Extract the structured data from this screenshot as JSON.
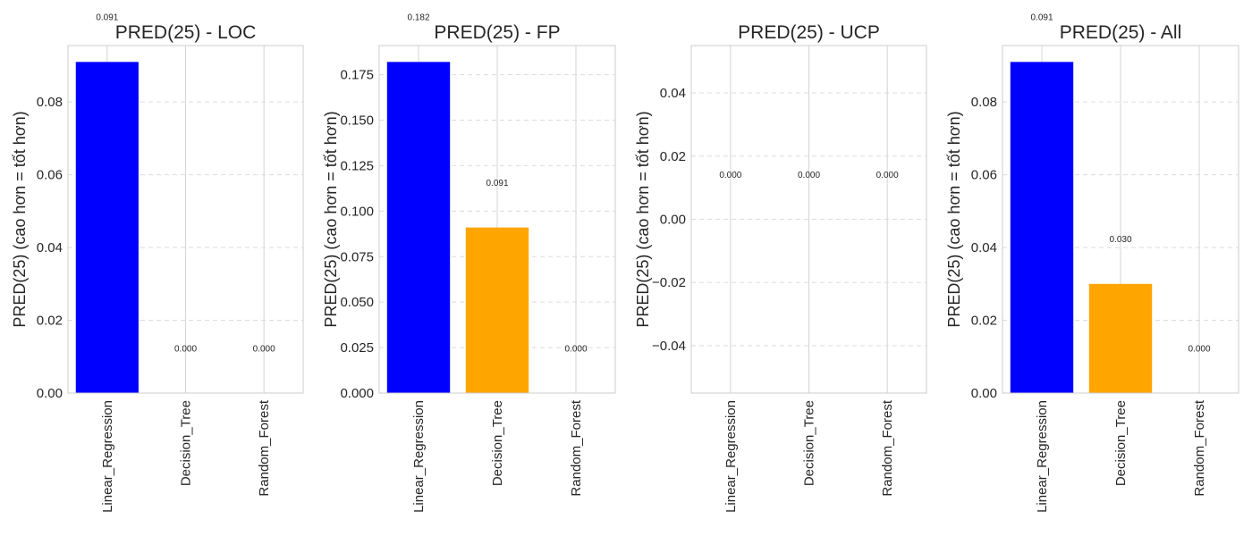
{
  "chart_data": [
    {
      "type": "bar",
      "title": "PRED(25) - LOC",
      "ylabel": "PRED(25) (cao hơn = tốt hơn)",
      "categories": [
        "Linear_Regression",
        "Decision_Tree",
        "Random_Forest"
      ],
      "values": [
        0.091,
        0.0,
        0.0
      ],
      "value_labels": [
        "0.091",
        "0.000",
        "0.000"
      ],
      "colors": [
        "#0000ff",
        "#ffa500",
        "#008000"
      ],
      "ylim": [
        0,
        0.0955
      ],
      "yticks": [
        0,
        0.02,
        0.04,
        0.06,
        0.08
      ],
      "ytick_labels": [
        "0.00",
        "0.02",
        "0.04",
        "0.06",
        "0.08"
      ],
      "grid": true
    },
    {
      "type": "bar",
      "title": "PRED(25) - FP",
      "ylabel": "PRED(25) (cao hơn = tốt hơn)",
      "categories": [
        "Linear_Regression",
        "Decision_Tree",
        "Random_Forest"
      ],
      "values": [
        0.182,
        0.091,
        0.0
      ],
      "value_labels": [
        "0.182",
        "0.091",
        "0.000"
      ],
      "colors": [
        "#0000ff",
        "#ffa500",
        "#008000"
      ],
      "ylim": [
        0,
        0.191
      ],
      "yticks": [
        0,
        0.025,
        0.05,
        0.075,
        0.1,
        0.125,
        0.15,
        0.175
      ],
      "ytick_labels": [
        "0.000",
        "0.025",
        "0.050",
        "0.075",
        "0.100",
        "0.125",
        "0.150",
        "0.175"
      ],
      "grid": true
    },
    {
      "type": "bar",
      "title": "PRED(25) - UCP",
      "ylabel": "PRED(25) (cao hơn = tốt hơn)",
      "categories": [
        "Linear_Regression",
        "Decision_Tree",
        "Random_Forest"
      ],
      "values": [
        0.0,
        0.0,
        0.0
      ],
      "value_labels": [
        "0.000",
        "0.000",
        "0.000"
      ],
      "colors": [
        "#0000ff",
        "#ffa500",
        "#008000"
      ],
      "ylim": [
        -0.055,
        0.055
      ],
      "yticks": [
        -0.04,
        -0.02,
        0,
        0.02,
        0.04
      ],
      "ytick_labels": [
        "−0.04",
        "−0.02",
        "0.00",
        "0.02",
        "0.04"
      ],
      "grid": true
    },
    {
      "type": "bar",
      "title": "PRED(25) - All",
      "ylabel": "PRED(25) (cao hơn = tốt hơn)",
      "categories": [
        "Linear_Regression",
        "Decision_Tree",
        "Random_Forest"
      ],
      "values": [
        0.091,
        0.03,
        0.0
      ],
      "value_labels": [
        "0.091",
        "0.030",
        "0.000"
      ],
      "colors": [
        "#0000ff",
        "#ffa500",
        "#008000"
      ],
      "ylim": [
        0,
        0.0955
      ],
      "yticks": [
        0,
        0.02,
        0.04,
        0.06,
        0.08
      ],
      "ytick_labels": [
        "0.00",
        "0.02",
        "0.04",
        "0.06",
        "0.08"
      ],
      "grid": true
    }
  ]
}
